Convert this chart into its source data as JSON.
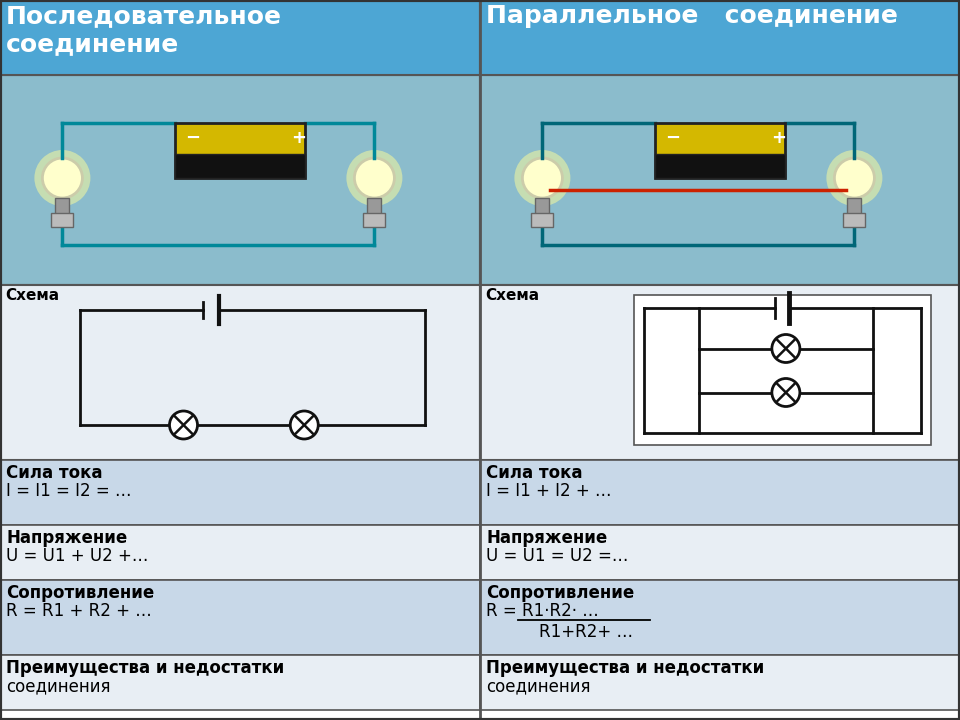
{
  "title_left": "Последовательное\nсоединение",
  "title_right": "Параллельное   соединение",
  "header_bg": "#4da6d4",
  "header_text_color": "#ffffff",
  "cell_bg_light": "#c8d8e8",
  "cell_bg_mid": "#dce8f0",
  "border_color": "#555555",
  "text_color": "#000000",
  "schema_bg": "#e8eef4",
  "photo_bg": "#8bbccc",
  "rows": [
    {
      "left_label": "Сила тока",
      "left_value": "I = I1 = I2 = …",
      "right_label": "Сила тока",
      "right_value": "I = I1 + I2 + …",
      "bg": "#c8d8e8"
    },
    {
      "left_label": "Напряжение",
      "left_value": "U = U1 + U2 +…",
      "right_label": "Напряжение",
      "right_value": "U = U1 = U2 =…",
      "bg": "#e8eef4"
    },
    {
      "left_label": "Сопротивление",
      "left_value": "R = R1 + R2 + …",
      "right_label": "Сопротивление",
      "right_value_line1": "R = R1·R2· …",
      "right_value_line2": "    R1+R2+ …",
      "bg": "#c8d8e8"
    },
    {
      "left_label": "Преимущества и недостатки",
      "left_value": "соединения",
      "right_label": "Преимущества и недостатки",
      "right_value": "соединения",
      "bg": "#e8eef4"
    }
  ]
}
